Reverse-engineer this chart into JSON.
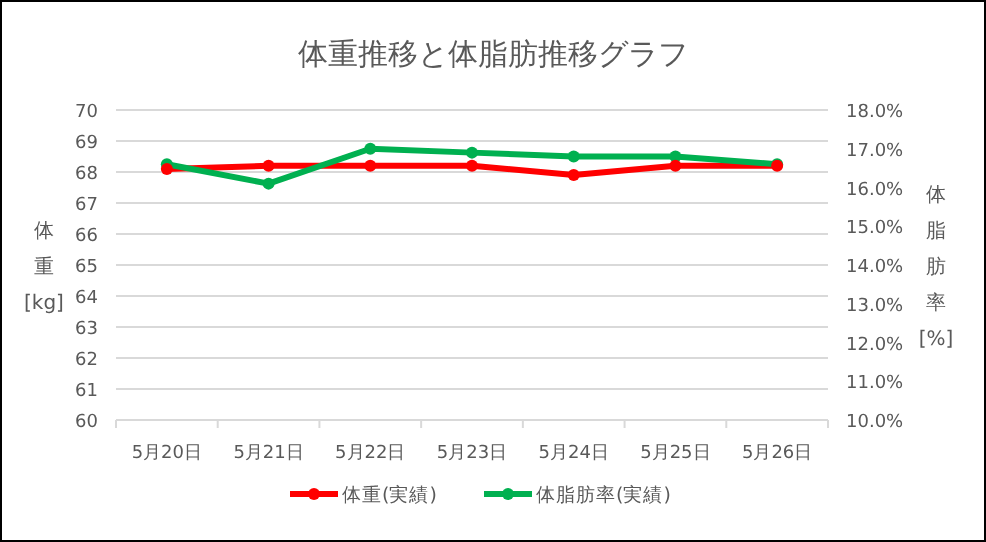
{
  "chart_data": {
    "type": "line",
    "title": "体重推移と体脂肪推移グラフ",
    "ylabel": "体重[kg]",
    "y2label": "体脂肪率[%]",
    "categories": [
      "5月20日",
      "5月21日",
      "5月22日",
      "5月23日",
      "5月24日",
      "5月25日",
      "5月26日"
    ],
    "series": [
      {
        "name": "体重(実績)",
        "color": "#ff0000",
        "values": [
          68.1,
          68.2,
          68.2,
          68.2,
          67.9,
          68.2,
          68.2
        ]
      },
      {
        "name": "体脂肪率(実績)",
        "color": "#00b050",
        "axis": "y2",
        "values": [
          16.6,
          16.1,
          17.0,
          16.9,
          16.8,
          16.8,
          16.6
        ]
      }
    ],
    "ylim": [
      60,
      70
    ],
    "yticks": [
      60,
      61,
      62,
      63,
      64,
      65,
      66,
      67,
      68,
      69,
      70
    ],
    "y2lim": [
      10,
      18
    ],
    "y2ticks": [
      {
        "value": 10,
        "label": "10.0%"
      },
      {
        "value": 11,
        "label": "11.0%"
      },
      {
        "value": 12,
        "label": "12.0%"
      },
      {
        "value": 13,
        "label": "13.0%"
      },
      {
        "value": 14,
        "label": "14.0%"
      },
      {
        "value": 15,
        "label": "15.0%"
      },
      {
        "value": 16,
        "label": "16.0%"
      },
      {
        "value": 17,
        "label": "17.0%"
      },
      {
        "value": 18,
        "label": "18.0%"
      }
    ],
    "grid": "y",
    "legend": "bottom",
    "marker": "circle",
    "line_style": "solid"
  }
}
